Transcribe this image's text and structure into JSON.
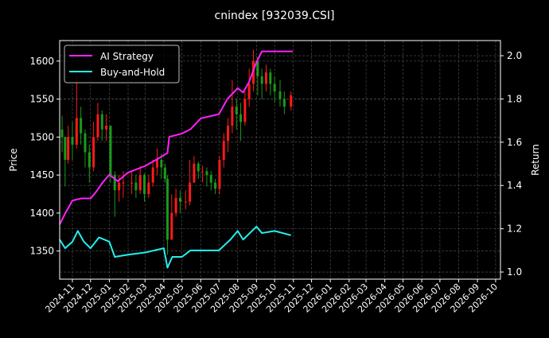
{
  "chart_data": {
    "type": "line",
    "title": "cnindex [932039.CSI]",
    "ylabel": "Price",
    "y2label": "Return",
    "ylim": [
      1313,
      1627
    ],
    "y2lim": [
      0.967,
      2.07
    ],
    "xlim": [
      "2024-10-11",
      "2026-10-09"
    ],
    "yticks": [
      1350,
      1400,
      1450,
      1500,
      1550,
      1600
    ],
    "y2ticks": [
      "1.0",
      "1.2",
      "1.4",
      "1.6",
      "1.8",
      "2.0"
    ],
    "xticks": [
      "2024-11",
      "2024-12",
      "2025-01",
      "2025-02",
      "2025-03",
      "2025-04",
      "2025-05",
      "2025-06",
      "2025-07",
      "2025-08",
      "2025-09",
      "2025-10",
      "2025-11",
      "2025-12",
      "2026-01",
      "2026-02",
      "2026-03",
      "2026-04",
      "2026-05",
      "2026-06",
      "2026-07",
      "2026-08",
      "2026-09",
      "2026-10"
    ],
    "grid": true,
    "legend_position": "top-left",
    "colors": {
      "up": "#ff1a1a",
      "down": "#1a9a1a",
      "ai": "#ff22ff",
      "bh": "#22f0f0",
      "bg": "#000000",
      "grid": "#555555"
    },
    "candles": {
      "dates": [
        "2024-10-15",
        "2024-10-20",
        "2024-10-25",
        "2024-11-01",
        "2024-11-08",
        "2024-11-15",
        "2024-11-22",
        "2024-11-29",
        "2024-12-06",
        "2024-12-13",
        "2024-12-20",
        "2024-12-27",
        "2025-01-03",
        "2025-01-10",
        "2025-01-17",
        "2025-01-24",
        "2025-02-07",
        "2025-02-14",
        "2025-02-21",
        "2025-02-28",
        "2025-03-07",
        "2025-03-14",
        "2025-03-21",
        "2025-03-28",
        "2025-04-03",
        "2025-04-07",
        "2025-04-14",
        "2025-04-21",
        "2025-04-28",
        "2025-05-07",
        "2025-05-14",
        "2025-05-21",
        "2025-05-28",
        "2025-06-04",
        "2025-06-11",
        "2025-06-18",
        "2025-06-25",
        "2025-07-02",
        "2025-07-09",
        "2025-07-16",
        "2025-07-23",
        "2025-07-30",
        "2025-08-06",
        "2025-08-13",
        "2025-08-20",
        "2025-08-27",
        "2025-09-03",
        "2025-09-10",
        "2025-09-17",
        "2025-09-24",
        "2025-10-01",
        "2025-10-10",
        "2025-10-17",
        "2025-10-28"
      ],
      "close": [
        1500,
        1470,
        1500,
        1490,
        1525,
        1505,
        1480,
        1460,
        1500,
        1530,
        1510,
        1515,
        1450,
        1430,
        1440,
        1440,
        1440,
        1430,
        1450,
        1425,
        1440,
        1460,
        1470,
        1460,
        1445,
        1365,
        1400,
        1420,
        1415,
        1415,
        1440,
        1465,
        1455,
        1455,
        1450,
        1440,
        1432,
        1470,
        1495,
        1515,
        1540,
        1530,
        1520,
        1550,
        1570,
        1600,
        1580,
        1570,
        1585,
        1570,
        1560,
        1550,
        1540,
        1555
      ],
      "high": [
        1528,
        1500,
        1515,
        1520,
        1580,
        1540,
        1510,
        1490,
        1520,
        1545,
        1535,
        1530,
        1500,
        1455,
        1450,
        1455,
        1455,
        1450,
        1462,
        1452,
        1450,
        1470,
        1485,
        1478,
        1465,
        1450,
        1425,
        1432,
        1430,
        1430,
        1470,
        1475,
        1468,
        1462,
        1460,
        1455,
        1445,
        1475,
        1505,
        1525,
        1575,
        1550,
        1545,
        1560,
        1590,
        1615,
        1605,
        1590,
        1595,
        1590,
        1580,
        1575,
        1560,
        1560
      ],
      "low": [
        1480,
        1435,
        1465,
        1470,
        1485,
        1490,
        1460,
        1440,
        1455,
        1495,
        1495,
        1495,
        1440,
        1395,
        1415,
        1420,
        1425,
        1420,
        1425,
        1415,
        1420,
        1435,
        1450,
        1445,
        1440,
        1345,
        1365,
        1395,
        1400,
        1405,
        1410,
        1445,
        1445,
        1440,
        1435,
        1430,
        1425,
        1425,
        1460,
        1480,
        1505,
        1510,
        1495,
        1515,
        1540,
        1560,
        1555,
        1550,
        1560,
        1555,
        1545,
        1540,
        1530,
        1535
      ]
    },
    "series": [
      {
        "name": "AI Strategy",
        "dates": [
          "2024-10-11",
          "2024-10-20",
          "2024-11-01",
          "2024-11-15",
          "2024-12-01",
          "2024-12-10",
          "2024-12-20",
          "2025-01-01",
          "2025-01-15",
          "2025-02-01",
          "2025-03-01",
          "2025-03-20",
          "2025-04-07",
          "2025-04-10",
          "2025-05-01",
          "2025-05-15",
          "2025-06-01",
          "2025-07-01",
          "2025-07-15",
          "2025-08-01",
          "2025-08-10",
          "2025-08-20",
          "2025-09-01",
          "2025-09-10",
          "2025-10-31"
        ],
        "values": [
          1.22,
          1.27,
          1.33,
          1.34,
          1.34,
          1.37,
          1.41,
          1.45,
          1.42,
          1.46,
          1.49,
          1.52,
          1.55,
          1.625,
          1.64,
          1.66,
          1.71,
          1.73,
          1.8,
          1.85,
          1.83,
          1.88,
          1.97,
          2.02,
          2.02
        ]
      },
      {
        "name": "Buy-and-Hold",
        "dates": [
          "2024-10-11",
          "2024-10-20",
          "2024-11-01",
          "2024-11-10",
          "2024-11-20",
          "2024-12-01",
          "2024-12-15",
          "2025-01-01",
          "2025-01-10",
          "2025-02-01",
          "2025-03-01",
          "2025-04-01",
          "2025-04-07",
          "2025-04-15",
          "2025-05-01",
          "2025-05-15",
          "2025-06-01",
          "2025-07-01",
          "2025-07-20",
          "2025-08-01",
          "2025-08-10",
          "2025-09-01",
          "2025-09-10",
          "2025-10-01",
          "2025-10-28"
        ],
        "values": [
          1.15,
          1.11,
          1.14,
          1.19,
          1.14,
          1.11,
          1.16,
          1.14,
          1.07,
          1.08,
          1.09,
          1.11,
          1.02,
          1.07,
          1.07,
          1.1,
          1.1,
          1.1,
          1.15,
          1.19,
          1.15,
          1.21,
          1.18,
          1.19,
          1.17
        ]
      }
    ]
  }
}
